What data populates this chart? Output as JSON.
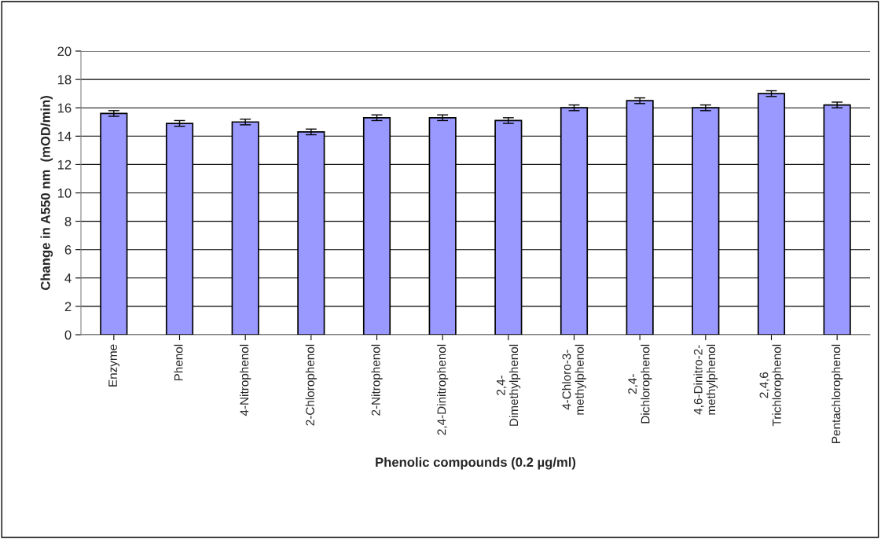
{
  "chart_data": {
    "type": "bar",
    "xlabel": "Phenolic compounds (0.2 µg/ml)",
    "ylabel": "Change in A550 nm  (mOD/min)",
    "categories": [
      "Enzyme",
      "Phenol",
      "4-Nitrophenol",
      "2-Chlorophenol",
      "2-Nitrophenol",
      "2,4-Dinitrophenol",
      "2,4-\nDimethylphenol",
      "4-Chloro-3-\nmethylphenol",
      "2,4-\nDichlorophenol",
      "4,6-Dinitro-2-\nmethylphenol",
      "2,4,6\nTrichlorophenol",
      "Pentachlorophenol"
    ],
    "values": [
      15.6,
      14.9,
      15.0,
      14.3,
      15.3,
      15.3,
      15.1,
      16.0,
      16.5,
      16.0,
      17.0,
      16.2
    ],
    "errors": [
      0.2,
      0.2,
      0.2,
      0.2,
      0.2,
      0.2,
      0.2,
      0.2,
      0.2,
      0.2,
      0.2,
      0.2
    ],
    "color": "#9999ff",
    "ylim": [
      0,
      20
    ],
    "yticks": [
      0,
      2,
      4,
      6,
      8,
      10,
      12,
      14,
      16,
      18,
      20
    ],
    "grid": "y",
    "legend": false
  }
}
